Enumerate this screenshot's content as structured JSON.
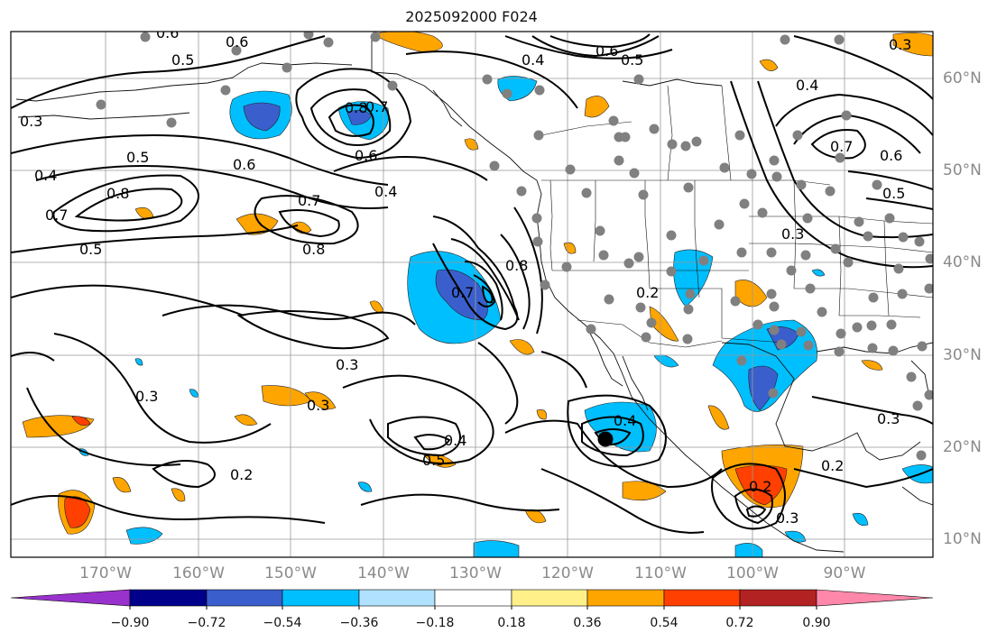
{
  "title": "2025092000 F024",
  "map": {
    "projection": "lat-lon",
    "lon_labels": [
      "170°W",
      "160°W",
      "150°W",
      "140°W",
      "130°W",
      "120°W",
      "110°W",
      "100°W",
      "90°W"
    ],
    "lat_labels": [
      "60°N",
      "50°N",
      "40°N",
      "30°N",
      "20°N",
      "10°N"
    ],
    "contour_labels": [
      "0.6",
      "0.6",
      "0.5",
      "0.3",
      "0.4",
      "0.5",
      "0.7",
      "0.8",
      "0.5",
      "0.6",
      "0.7",
      "0.8",
      "0.6",
      "0.4",
      "0.7",
      "0.8",
      "0.4",
      "0.6",
      "0.5",
      "0.4",
      "0.7",
      "0.6",
      "0.5",
      "0.3",
      "0.3",
      "0.3",
      "0.3",
      "0.2",
      "0.4",
      "0.5",
      "0.4",
      "0.3",
      "0.2",
      "0.2",
      "0.3",
      "0.2",
      "0.3",
      "0.7",
      "0.8"
    ],
    "features": [
      "coastlines",
      "political-boundaries",
      "filled-anomaly-shading",
      "black-contours",
      "gray-station-dots",
      "storm-center-marker"
    ]
  },
  "colorbar": {
    "orientation": "horizontal",
    "extend": "both",
    "tick_labels": [
      "−0.90",
      "−0.72",
      "−0.54",
      "−0.36",
      "−0.18",
      "0.18",
      "0.36",
      "0.54",
      "0.72",
      "0.90"
    ],
    "colors": [
      "#9932cc",
      "#00008b",
      "#3a5fcd",
      "#00bfff",
      "#b0e2ff",
      "#ffffff",
      "#fff08a",
      "#ffa500",
      "#ff4000",
      "#b22222",
      "#ff88aa"
    ]
  }
}
